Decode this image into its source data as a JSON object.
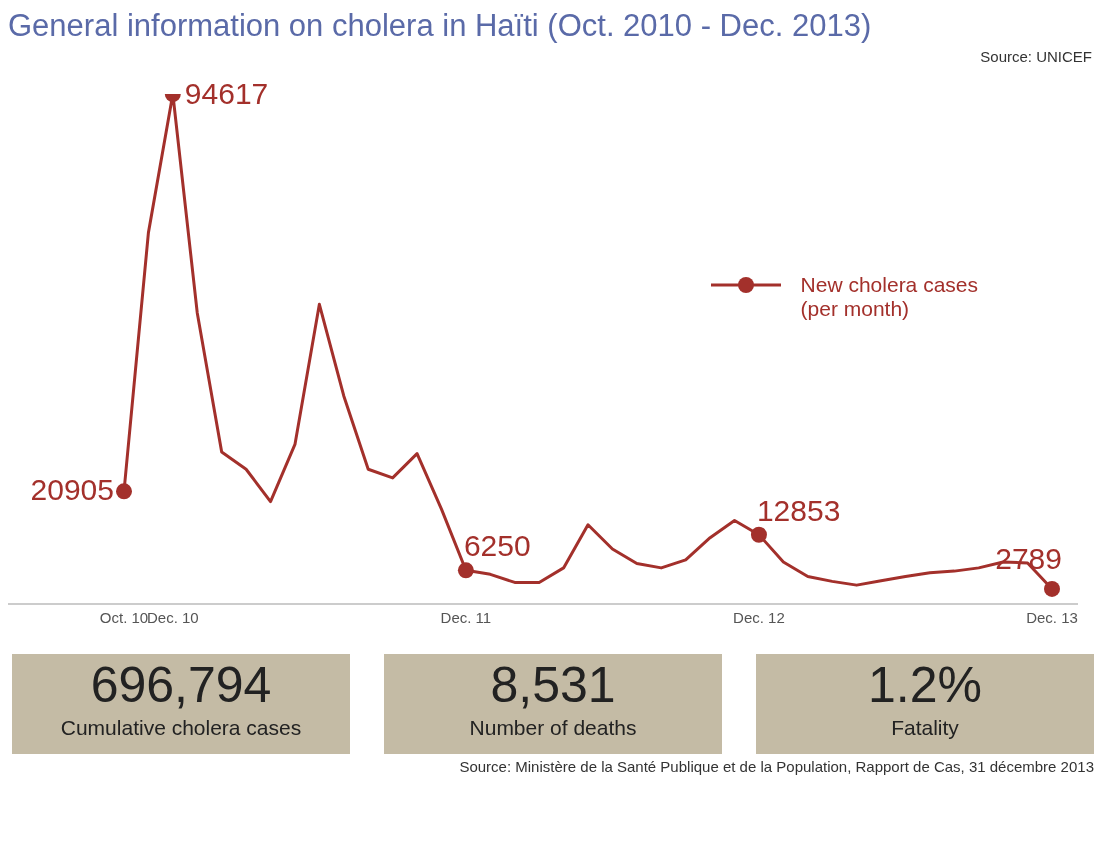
{
  "chart_data": [
    {
      "type": "line",
      "title": "General information on cholera in Haïti (Oct. 2010 - Dec. 2013)",
      "annotations": [
        "Source: UNICEF"
      ],
      "categories": [
        "Oct. 10",
        null,
        "Dec. 10",
        null,
        null,
        null,
        null,
        null,
        null,
        null,
        null,
        null,
        null,
        null,
        "Dec. 11",
        null,
        null,
        null,
        null,
        null,
        null,
        null,
        null,
        null,
        null,
        null,
        "Dec. 12",
        null,
        null,
        null,
        null,
        null,
        null,
        null,
        null,
        null,
        null,
        null,
        "Dec. 13"
      ],
      "series": [
        {
          "name": "New cholera cases\n(per month)",
          "color": "#a3302b",
          "values": [
            20905,
            68900,
            94617,
            54000,
            28200,
            25000,
            19000,
            29600,
            55600,
            38600,
            25000,
            23400,
            27900,
            17600,
            6250,
            5500,
            4000,
            4000,
            6700,
            14700,
            10200,
            7500,
            6700,
            8200,
            12300,
            15500,
            12853,
            7800,
            5100,
            4200,
            3500,
            4300,
            5100,
            5800,
            6100,
            6700,
            7800,
            7600,
            2789
          ],
          "value_labels": [
            "20905",
            null,
            "94617",
            null,
            null,
            null,
            null,
            null,
            null,
            null,
            null,
            null,
            null,
            null,
            "6250",
            null,
            null,
            null,
            null,
            null,
            null,
            null,
            null,
            null,
            null,
            null,
            "12853",
            null,
            null,
            null,
            null,
            null,
            null,
            null,
            null,
            null,
            null,
            null,
            "2789"
          ]
        }
      ],
      "tick_labels": "x",
      "legend": "top right",
      "line_style": "solid"
    },
    {
      "type": "other",
      "categories": [
        "Cumulative cholera cases",
        "Number of deaths",
        "Fatality"
      ],
      "value_labels": [
        "696,794",
        "8,531",
        "1.2%"
      ],
      "colors": [
        "#c4bba5",
        "#c4bba5",
        "#c4bba5"
      ],
      "annotations": [
        "Source: Ministère de la Santé Publique et de la Population, Rapport de Cas, 31 décembre 2013"
      ]
    }
  ]
}
